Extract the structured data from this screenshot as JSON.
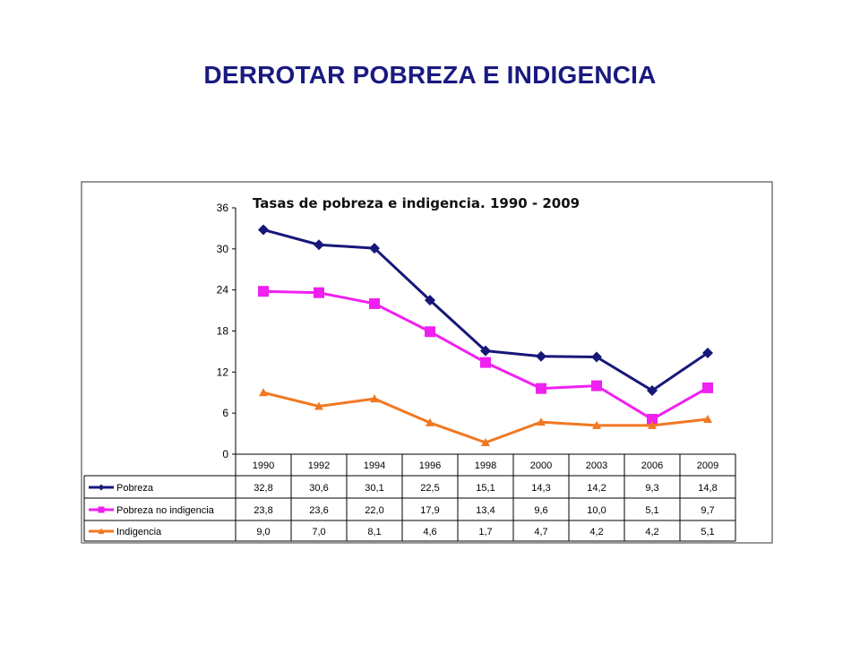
{
  "slide": {
    "title": "DERROTAR POBREZA E INDIGENCIA"
  },
  "chart_data": {
    "type": "line",
    "title": "Tasas de pobreza e indigencia. 1990 - 2009",
    "xlabel": "",
    "ylabel": "",
    "categories": [
      "1990",
      "1992",
      "1994",
      "1996",
      "1998",
      "2000",
      "2003",
      "2006",
      "2009"
    ],
    "y_ticks": [
      "0",
      "6",
      "12",
      "18",
      "24",
      "30",
      "36"
    ],
    "ylim": [
      0,
      36
    ],
    "grid": false,
    "legend_placement": "data table below chart",
    "series": [
      {
        "name": "Pobreza",
        "color": "#17177a",
        "marker": "diamond",
        "values": [
          32.8,
          30.6,
          30.1,
          22.5,
          15.1,
          14.3,
          14.2,
          9.3,
          14.8
        ],
        "labels": [
          "32,8",
          "30,6",
          "30,1",
          "22,5",
          "15,1",
          "14,3",
          "14,2",
          "9,3",
          "14,8"
        ]
      },
      {
        "name": "Pobreza no indigencia",
        "color": "#f020f0",
        "marker": "square",
        "values": [
          23.8,
          23.6,
          22.0,
          17.9,
          13.4,
          9.6,
          10.0,
          5.1,
          9.7
        ],
        "labels": [
          "23,8",
          "23,6",
          "22,0",
          "17,9",
          "13,4",
          "9,6",
          "10,0",
          "5,1",
          "9,7"
        ]
      },
      {
        "name": "Indigencia",
        "color": "#f07820",
        "marker": "triangle",
        "values": [
          9.0,
          7.0,
          8.1,
          4.6,
          1.7,
          4.7,
          4.2,
          4.2,
          5.1
        ],
        "labels": [
          "9,0",
          "7,0",
          "8,1",
          "4,6",
          "1,7",
          "4,7",
          "4,2",
          "4,2",
          "5,1"
        ]
      }
    ]
  }
}
